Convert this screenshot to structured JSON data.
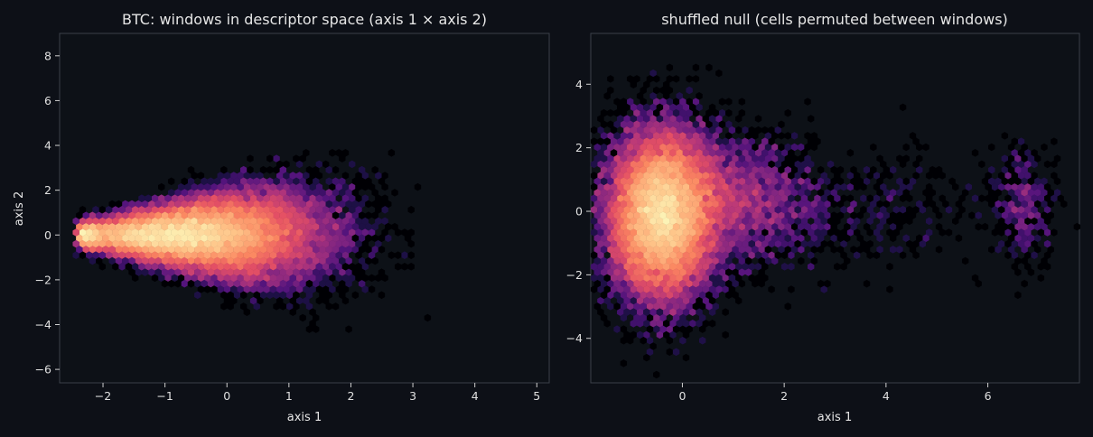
{
  "chart_data": [
    {
      "type": "heatmap",
      "subtype": "hexbin",
      "title": "BTC: windows in descriptor space (axis 1 × axis 2)",
      "xlabel": "axis 1",
      "ylabel": "axis 2",
      "xlim": [
        -2.7,
        5.2
      ],
      "ylim": [
        -6.6,
        9.0
      ],
      "xticks": [
        -2,
        -1,
        0,
        1,
        2,
        3,
        4,
        5
      ],
      "yticks": [
        -6,
        -4,
        -2,
        0,
        2,
        4,
        6,
        8
      ],
      "grid": false,
      "colormap": "magma",
      "density_clusters": [
        {
          "x": -0.5,
          "y": 0.0,
          "spread_x": 1.0,
          "spread_y_base": 0.5,
          "spread_y_growth": 0.85,
          "weight": 1.0,
          "x_min": -2.4,
          "x_max": 4.8
        }
      ],
      "sample_count": 26000
    },
    {
      "type": "heatmap",
      "subtype": "hexbin",
      "title": "shuffled null (cells permuted between windows)",
      "xlabel": "axis 1",
      "ylabel": "",
      "xlim": [
        -1.8,
        7.8
      ],
      "ylim": [
        -5.4,
        5.6
      ],
      "xticks": [
        0,
        2,
        4,
        6
      ],
      "yticks": [
        -4,
        -2,
        0,
        2,
        4
      ],
      "grid": false,
      "colormap": "magma",
      "density_clusters": [
        {
          "x": -0.4,
          "y": -0.1,
          "spread_x": 0.5,
          "spread_y": 1.25,
          "weight": 0.85
        },
        {
          "x": 0.9,
          "y": 0.3,
          "spread_x": 0.9,
          "spread_y": 1.0,
          "weight": 0.12
        },
        {
          "x": 3.6,
          "y": 0.2,
          "spread_x": 1.2,
          "spread_y": 1.0,
          "weight": 0.015
        },
        {
          "x": 6.7,
          "y": 0.2,
          "spread_x": 0.3,
          "spread_y": 0.9,
          "weight": 0.015
        }
      ],
      "sample_count": 24000
    }
  ]
}
